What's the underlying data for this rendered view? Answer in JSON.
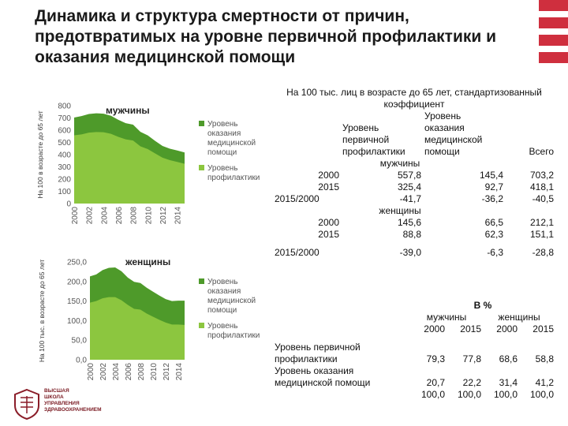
{
  "title": "Динамика и структура смертности от причин, предотвратимых на уровне первичной профилактики и оказания медицинской помощи",
  "chart_data": [
    {
      "type": "area",
      "title": "мужчины",
      "ylabel": "На 100 в возрасте до 65 лет",
      "ylim": [
        0,
        800
      ],
      "yticks": [
        "0",
        "100",
        "200",
        "300",
        "400",
        "500",
        "600",
        "700",
        "800"
      ],
      "x": [
        "2000",
        "2001",
        "2002",
        "2003",
        "2004",
        "2005",
        "2006",
        "2007",
        "2008",
        "2009",
        "2010",
        "2011",
        "2012",
        "2013",
        "2014",
        "2015"
      ],
      "xticks": [
        "2000",
        "2002",
        "2004",
        "2006",
        "2008",
        "2010",
        "2012",
        "2014"
      ],
      "series": [
        {
          "name": "Уровень профилактики",
          "color": "#8cc63f",
          "values": [
            558,
            565,
            580,
            585,
            583,
            570,
            545,
            525,
            515,
            468,
            445,
            410,
            375,
            355,
            340,
            325
          ]
        },
        {
          "name": "Уровень оказания медицинской помощи",
          "color": "#4e9a2a",
          "values": [
            145,
            150,
            152,
            153,
            152,
            148,
            140,
            132,
            130,
            118,
            112,
            102,
            96,
            93,
            94,
            93
          ]
        }
      ],
      "legend": "right"
    },
    {
      "type": "area",
      "title": "женщины",
      "ylabel": "На 100 тыс. в возрасте до 65 лет",
      "ylim": [
        0,
        250
      ],
      "yticks": [
        "0,0",
        "50,0",
        "100,0",
        "150,0",
        "200,0",
        "250,0"
      ],
      "x": [
        "2000",
        "2001",
        "2002",
        "2003",
        "2004",
        "2005",
        "2006",
        "2007",
        "2008",
        "2009",
        "2010",
        "2011",
        "2012",
        "2013",
        "2014",
        "2015"
      ],
      "xticks": [
        "2000",
        "2002",
        "2004",
        "2006",
        "2008",
        "2010",
        "2012",
        "2014"
      ],
      "series": [
        {
          "name": "Уровень профилактики",
          "color": "#8cc63f",
          "values": [
            146,
            150,
            157,
            160,
            160,
            152,
            140,
            130,
            128,
            118,
            110,
            102,
            95,
            90,
            90,
            89
          ]
        },
        {
          "name": "Уровень оказания медицинской помощи",
          "color": "#4e9a2a",
          "values": [
            67,
            68,
            72,
            75,
            76,
            74,
            70,
            69,
            68,
            66,
            64,
            62,
            60,
            60,
            61,
            62
          ]
        }
      ],
      "legend": "right"
    }
  ],
  "table1": {
    "header_line1": "На 100 тыс. лиц в возрасте до 65 лет, стандартизованный",
    "header_line2": "коэффициент",
    "col_prof": [
      "Уровень",
      "первичной",
      "профилактики"
    ],
    "col_med": [
      "Уровень",
      "оказания",
      "медицинской",
      "помощи"
    ],
    "col_total": "Всего",
    "section_men": "мужчины",
    "section_women": "женщины",
    "rows_men": [
      {
        "label": "2000",
        "prof": "557,8",
        "med": "145,4",
        "total": "703,2"
      },
      {
        "label": "2015",
        "prof": "325,4",
        "med": "92,7",
        "total": "418,1"
      },
      {
        "label": "2015/2000",
        "prof": "-41,7",
        "med": "-36,2",
        "total": "-40,5"
      }
    ],
    "rows_women": [
      {
        "label": "2000",
        "prof": "145,6",
        "med": "66,5",
        "total": "212,1"
      },
      {
        "label": "2015",
        "prof": "88,8",
        "med": "62,3",
        "total": "151,1"
      },
      {
        "label": "2015/2000",
        "prof": "-39,0",
        "med": "-6,3",
        "total": "-28,8"
      }
    ]
  },
  "table2": {
    "header": "В %",
    "men": "мужчины",
    "women": "женщины",
    "years": [
      "2000",
      "2015",
      "2000",
      "2015"
    ],
    "row1_label": [
      "Уровень первичной",
      "профилактики"
    ],
    "row1": [
      "79,3",
      "77,8",
      "68,6",
      "58,8"
    ],
    "row2_label": [
      "Уровень оказания",
      "медицинской помощи"
    ],
    "row2": [
      "20,7",
      "22,2",
      "31,4",
      "41,2"
    ],
    "row3": [
      "100,0",
      "100,0",
      "100,0",
      "100,0"
    ]
  },
  "logo": {
    "lines": [
      "ВЫСШАЯ",
      "ШКОЛА",
      "УПРАВЛЕНИЯ",
      "ЗДРАВООХРАНЕНИЕМ"
    ],
    "color": "#8a1c28"
  }
}
